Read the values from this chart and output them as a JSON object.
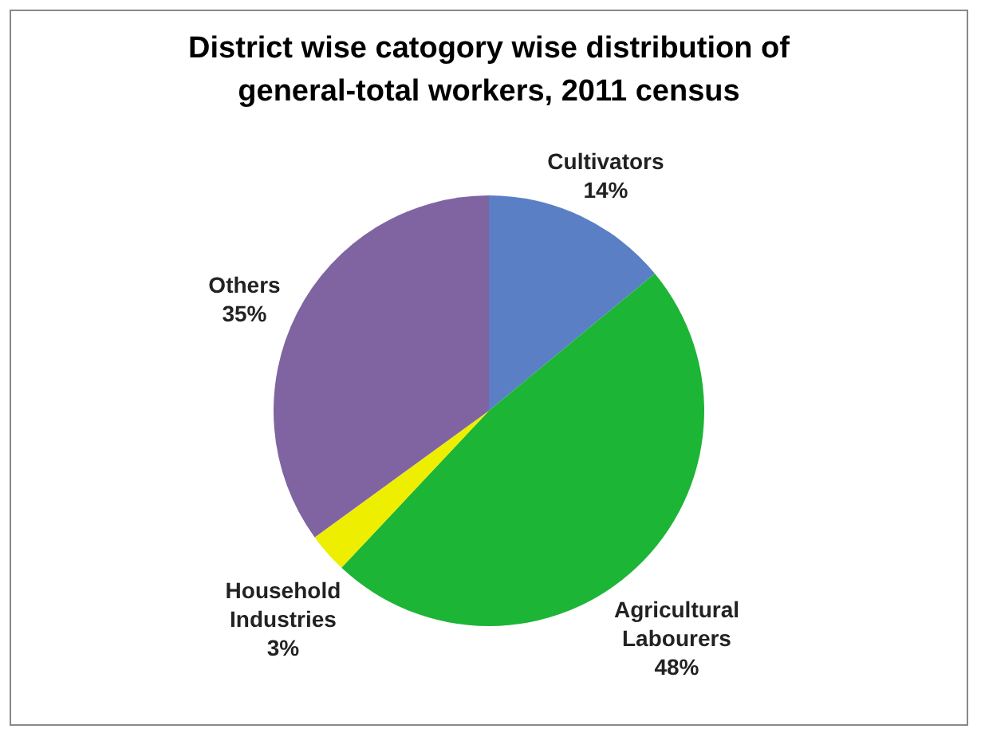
{
  "chart_data": {
    "type": "pie",
    "title": "District wise catogory wise distribution of general-total workers, 2011 census",
    "categories": [
      "Cultivators",
      "Agricultural Labourers",
      "Household Industries",
      "Others"
    ],
    "values": [
      14,
      48,
      3,
      35
    ],
    "value_labels": [
      "14%",
      "48%",
      "3%",
      "35%"
    ],
    "colors": [
      "#5a7fc4",
      "#1cb536",
      "#eeee00",
      "#8064a2"
    ],
    "legend": false
  }
}
